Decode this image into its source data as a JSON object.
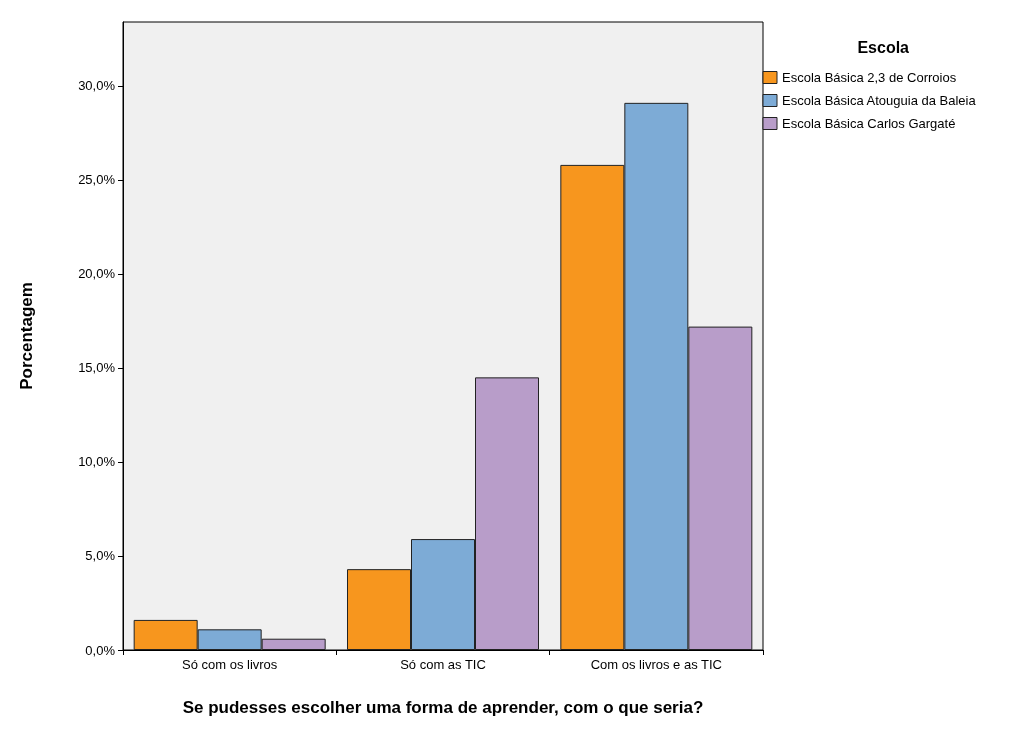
{
  "chart_data": {
    "type": "bar",
    "xlabel": "Se pudesses escolher uma forma de aprender, com o que seria?",
    "ylabel": "Porcentagem",
    "legend_title": "Escola",
    "categories": [
      "Só com os livros",
      "Só com as TIC",
      "Com os livros e as TIC"
    ],
    "series": [
      {
        "name": "Escola Básica 2,3 de Corroios",
        "color": "#f7961e",
        "values": [
          1.6,
          4.3,
          25.8
        ]
      },
      {
        "name": "Escola Básica Atouguia da Baleia",
        "color": "#7dabd6",
        "values": [
          1.1,
          5.9,
          29.1
        ]
      },
      {
        "name": "Escola Básica Carlos Gargaté",
        "color": "#b89dc9",
        "values": [
          0.6,
          14.5,
          17.2
        ]
      }
    ],
    "ylim": [
      0,
      33.4
    ],
    "yticks": [
      {
        "value": 0,
        "label": "0,0%"
      },
      {
        "value": 5,
        "label": "5,0%"
      },
      {
        "value": 10,
        "label": "10,0%"
      },
      {
        "value": 15,
        "label": "15,0%"
      },
      {
        "value": 20,
        "label": "20,0%"
      },
      {
        "value": 25,
        "label": "25,0%"
      },
      {
        "value": 30,
        "label": "30,0%"
      }
    ],
    "grid": false,
    "legend": "top right"
  }
}
